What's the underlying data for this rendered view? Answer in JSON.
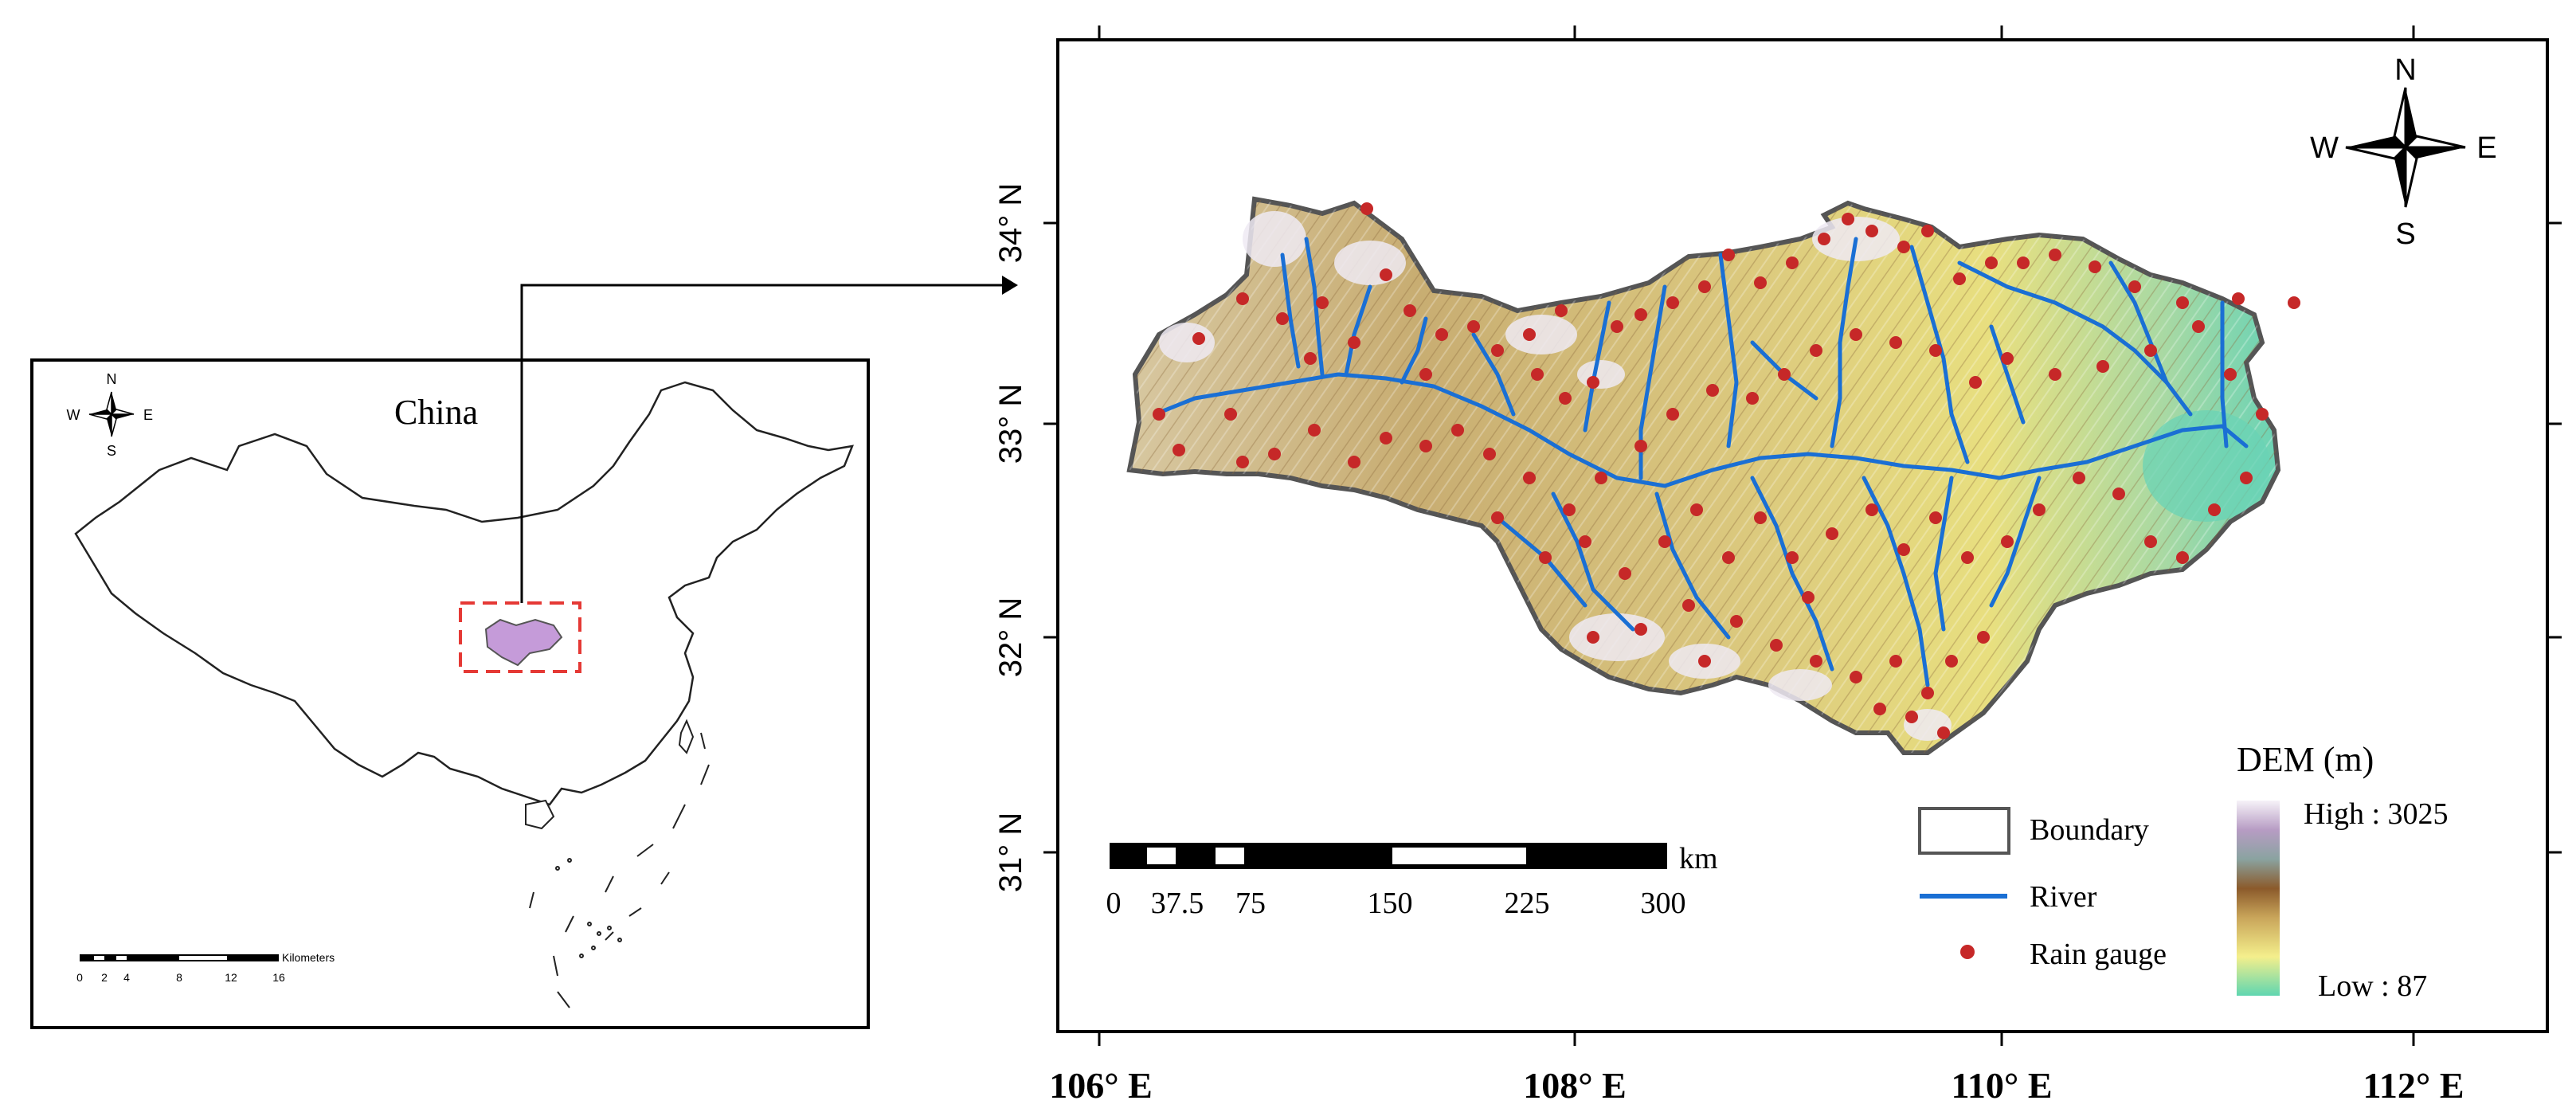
{
  "inset_map": {
    "country_label": "China",
    "compass": {
      "n": "N",
      "s": "S",
      "e": "E",
      "w": "W"
    },
    "scale": {
      "unit": "Kilometers",
      "ticks": [
        "0",
        "2",
        "4",
        "8",
        "12",
        "16"
      ]
    },
    "study_area_fill": "#c59bd9",
    "highlight_box_color": "#e53935"
  },
  "main_map": {
    "compass": {
      "n": "N",
      "s": "S",
      "e": "E",
      "w": "W"
    },
    "lat_labels": [
      "34° N",
      "33° N",
      "32° N",
      "31° N"
    ],
    "lon_labels": [
      "106° E",
      "108° E",
      "110° E",
      "112° E"
    ],
    "scale": {
      "unit": "km",
      "ticks": [
        "0",
        "37.5",
        "75",
        "150",
        "225",
        "300"
      ]
    },
    "legend": {
      "boundary": "Boundary",
      "river": "River",
      "rain_gauge": "Rain gauge",
      "dem_title": "DEM (m)",
      "dem_high": "High : 3025",
      "dem_low": "Low : 87"
    },
    "colors": {
      "river": "#1a6fd4",
      "rain_gauge": "#c62828",
      "boundary": "#555555",
      "dem_high": "#f4f1f7",
      "dem_mid": "#8b5a2b",
      "dem_low_yellow": "#f3ef8a",
      "dem_low": "#5fd6b0"
    }
  }
}
